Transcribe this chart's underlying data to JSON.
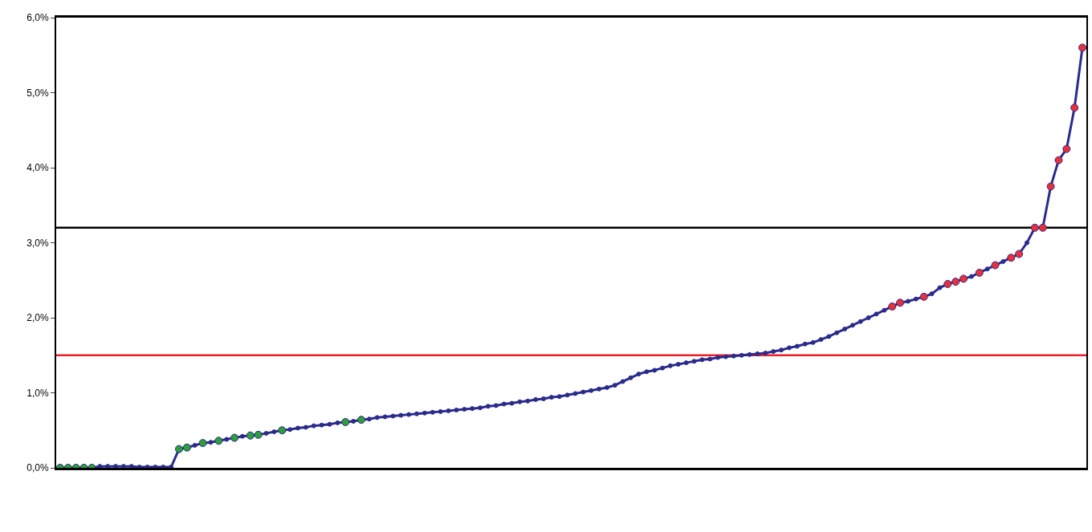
{
  "chart_data": {
    "type": "line",
    "categories": [
      null,
      null,
      null,
      null,
      null,
      null,
      null,
      null,
      null,
      null,
      null,
      null,
      null,
      null,
      null,
      null,
      null,
      null,
      null,
      null,
      null,
      null,
      null,
      null,
      null,
      null,
      null,
      null,
      null,
      null,
      null,
      null,
      null,
      null,
      null,
      null,
      null,
      null,
      null,
      null,
      null,
      null,
      null,
      null,
      null,
      null,
      null,
      null,
      null,
      null,
      null,
      null,
      null,
      null,
      null,
      null,
      null,
      null,
      null,
      null,
      null,
      null,
      null,
      null,
      null,
      null,
      null,
      null,
      null,
      null,
      null,
      null,
      null,
      null,
      null,
      null,
      null,
      null,
      null,
      null,
      null,
      null,
      null,
      null,
      null,
      null,
      null,
      null,
      null,
      null,
      null,
      null,
      null,
      null,
      null,
      null,
      null,
      null,
      null,
      null,
      null,
      null,
      null,
      null,
      null,
      null,
      null,
      null,
      null,
      null,
      null,
      null,
      null,
      null,
      null,
      null,
      null,
      null,
      null,
      null,
      null,
      null,
      null,
      null,
      null,
      null,
      null,
      null,
      null,
      null
    ],
    "series": [
      {
        "color": "#2b2b8c",
        "marker": "circle",
        "values": [
          0.0,
          0.0,
          0.0,
          0.0,
          0.0,
          0.02,
          0.02,
          0.02,
          0.02,
          0.02,
          0.01,
          0.01,
          0.01,
          0.01,
          0.01,
          0.25,
          0.27,
          0.3,
          0.33,
          0.34,
          0.36,
          0.38,
          0.4,
          0.42,
          0.43,
          0.44,
          0.46,
          0.48,
          0.5,
          0.51,
          0.53,
          0.54,
          0.56,
          0.57,
          0.58,
          0.6,
          0.61,
          0.62,
          0.64,
          0.65,
          0.67,
          0.68,
          0.69,
          0.7,
          0.71,
          0.72,
          0.73,
          0.74,
          0.75,
          0.76,
          0.77,
          0.78,
          0.79,
          0.8,
          0.82,
          0.83,
          0.85,
          0.86,
          0.88,
          0.89,
          0.91,
          0.92,
          0.94,
          0.95,
          0.97,
          0.99,
          1.01,
          1.03,
          1.05,
          1.07,
          1.1,
          1.15,
          1.2,
          1.25,
          1.28,
          1.3,
          1.33,
          1.36,
          1.38,
          1.4,
          1.42,
          1.44,
          1.45,
          1.47,
          1.48,
          1.49,
          1.5,
          1.51,
          1.52,
          1.53,
          1.55,
          1.57,
          1.6,
          1.62,
          1.65,
          1.67,
          1.71,
          1.75,
          1.8,
          1.85,
          1.9,
          1.95,
          2.0,
          2.05,
          2.1,
          2.15,
          2.2,
          2.22,
          2.25,
          2.28,
          2.32,
          2.4,
          2.45,
          2.48,
          2.52,
          2.55,
          2.6,
          2.65,
          2.7,
          2.75,
          2.8,
          2.85,
          3.0,
          3.2,
          3.2,
          3.75,
          4.1,
          4.25,
          4.8,
          5.6
        ]
      },
      {
        "type": "scatter",
        "color": "#2e9e3a",
        "marker": "circle",
        "values": [
          0.0,
          0.0,
          0.0,
          0.0,
          0.0,
          null,
          null,
          null,
          null,
          null,
          null,
          null,
          null,
          null,
          null,
          0.25,
          0.27,
          null,
          0.33,
          null,
          0.36,
          null,
          0.4,
          null,
          0.43,
          0.44,
          null,
          null,
          0.5,
          null,
          null,
          null,
          null,
          null,
          null,
          null,
          0.61,
          null,
          0.64,
          null,
          null,
          null,
          null,
          null,
          null,
          null,
          null,
          null,
          null,
          null,
          null,
          null,
          null,
          null,
          null,
          null,
          null,
          null,
          null,
          null,
          null,
          null,
          null,
          null,
          null,
          null,
          null,
          null,
          null,
          null,
          null,
          null,
          null,
          null,
          null,
          null,
          null,
          null,
          null,
          null,
          null,
          null,
          null,
          null,
          null,
          null,
          null,
          null,
          null,
          null,
          null,
          null,
          null,
          null,
          null,
          null,
          null,
          null,
          null,
          null,
          null,
          null,
          null,
          null,
          null,
          null,
          null,
          null,
          null,
          null,
          null,
          null,
          null,
          null,
          null,
          null,
          null,
          null,
          null,
          null,
          null,
          null,
          null,
          null,
          null,
          null,
          null,
          null,
          null,
          null
        ]
      },
      {
        "type": "scatter",
        "color": "#e8303a",
        "marker": "circle",
        "values": [
          null,
          null,
          null,
          null,
          null,
          null,
          null,
          null,
          null,
          null,
          null,
          null,
          null,
          null,
          null,
          null,
          null,
          null,
          null,
          null,
          null,
          null,
          null,
          null,
          null,
          null,
          null,
          null,
          null,
          null,
          null,
          null,
          null,
          null,
          null,
          null,
          null,
          null,
          null,
          null,
          null,
          null,
          null,
          null,
          null,
          null,
          null,
          null,
          null,
          null,
          null,
          null,
          null,
          null,
          null,
          null,
          null,
          null,
          null,
          null,
          null,
          null,
          null,
          null,
          null,
          null,
          null,
          null,
          null,
          null,
          null,
          null,
          null,
          null,
          null,
          null,
          null,
          null,
          null,
          null,
          null,
          null,
          null,
          null,
          null,
          null,
          null,
          null,
          null,
          null,
          null,
          null,
          null,
          null,
          null,
          null,
          null,
          null,
          null,
          null,
          null,
          null,
          null,
          null,
          null,
          2.15,
          2.2,
          null,
          null,
          2.28,
          null,
          null,
          2.45,
          2.48,
          2.52,
          null,
          2.6,
          null,
          2.7,
          null,
          2.8,
          2.85,
          null,
          3.2,
          3.2,
          3.75,
          4.1,
          4.25,
          4.8,
          5.6
        ]
      }
    ],
    "ylim": [
      0,
      6
    ],
    "yticks": [
      {
        "value": 0,
        "label": "0,0%"
      },
      {
        "value": 1,
        "label": "1,0%"
      },
      {
        "value": 2,
        "label": "2,0%"
      },
      {
        "value": 3,
        "label": "3,0%"
      },
      {
        "value": 4,
        "label": "4,0%"
      },
      {
        "value": 5,
        "label": "5,0%"
      },
      {
        "value": 6,
        "label": "6,0%"
      }
    ],
    "ref_lines": [
      {
        "axis": "y",
        "value": 1.5,
        "color": "#e8202a"
      },
      {
        "axis": "y",
        "value": 3.2,
        "color": "#000000"
      }
    ]
  }
}
